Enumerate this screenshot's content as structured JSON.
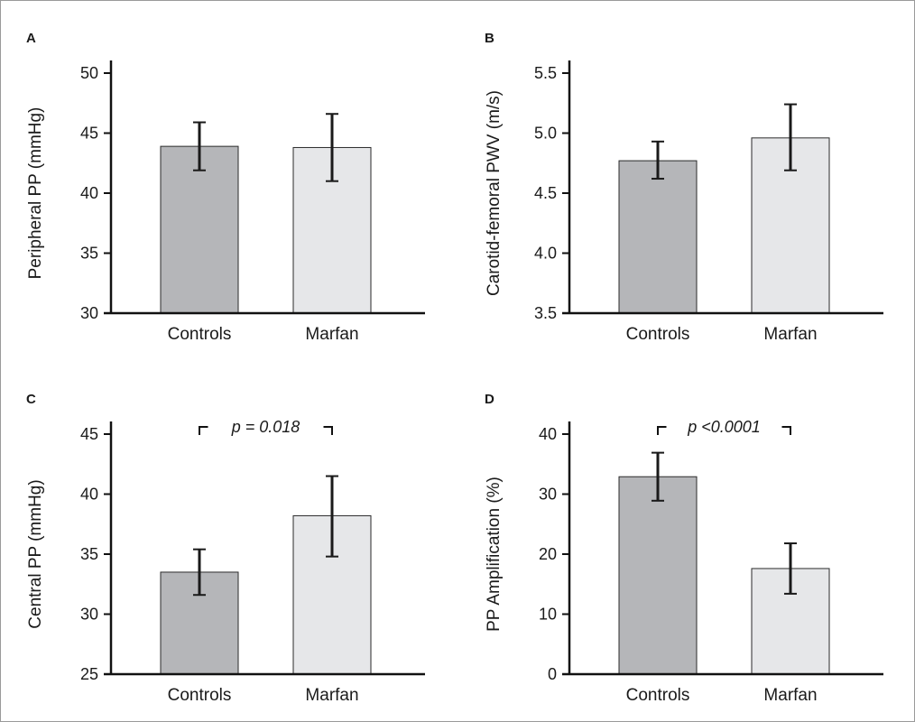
{
  "colors": {
    "controls": "#b5b6b9",
    "marfan": "#e6e7e9",
    "bar_stroke": "#2a2a2a",
    "axis": "#111111",
    "error_bar": "#1a1a1a"
  },
  "chart_data": [
    {
      "type": "bar",
      "panel": "A",
      "categories": [
        "Controls",
        "Marfan"
      ],
      "values": [
        43.9,
        43.8
      ],
      "error_low": [
        41.9,
        41.0
      ],
      "error_high": [
        45.9,
        46.6
      ],
      "ylabel": "Peripheral PP    (mmHg)",
      "ylim": [
        30,
        50
      ],
      "yticks": [
        30,
        35,
        40,
        45,
        50
      ],
      "ytick_labels": [
        "30",
        "35",
        "40",
        "45",
        "50"
      ],
      "significance": "",
      "grid": false
    },
    {
      "type": "bar",
      "panel": "B",
      "categories": [
        "Controls",
        "Marfan"
      ],
      "values": [
        4.77,
        4.96
      ],
      "error_low": [
        4.62,
        4.69
      ],
      "error_high": [
        4.93,
        5.24
      ],
      "ylabel": "Carotid-femoral PWV   (m/s)",
      "ylim": [
        3.5,
        5.5
      ],
      "yticks": [
        3.5,
        4.0,
        4.5,
        5.0,
        5.5
      ],
      "ytick_labels": [
        "3.5",
        "4.0",
        "4.5",
        "5.0",
        "5.5"
      ],
      "significance": "",
      "grid": false
    },
    {
      "type": "bar",
      "panel": "C",
      "categories": [
        "Controls",
        "Marfan"
      ],
      "values": [
        33.5,
        38.2
      ],
      "error_low": [
        31.6,
        34.8
      ],
      "error_high": [
        35.4,
        41.5
      ],
      "ylabel": "Central PP    (mmHg)",
      "ylim": [
        25,
        45
      ],
      "yticks": [
        25,
        30,
        35,
        40,
        45
      ],
      "ytick_labels": [
        "25",
        "30",
        "35",
        "40",
        "45"
      ],
      "significance": "p = 0.018",
      "grid": false
    },
    {
      "type": "bar",
      "panel": "D",
      "categories": [
        "Controls",
        "Marfan"
      ],
      "values": [
        32.9,
        17.6
      ],
      "error_low": [
        28.9,
        13.4
      ],
      "error_high": [
        36.9,
        21.8
      ],
      "ylabel": "PP Amplification (%)",
      "ylim": [
        0,
        40
      ],
      "yticks": [
        0,
        10,
        20,
        30,
        40
      ],
      "ytick_labels": [
        "0",
        "10",
        "20",
        "30",
        "40"
      ],
      "significance": "p <0.0001",
      "grid": false
    }
  ]
}
